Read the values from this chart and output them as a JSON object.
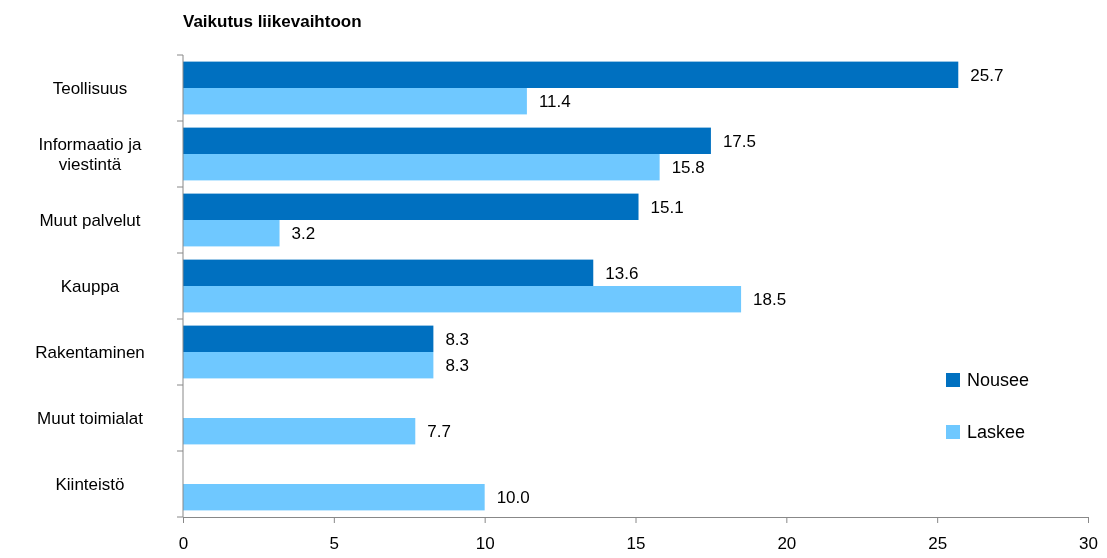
{
  "chart_data": {
    "type": "bar",
    "orientation": "horizontal",
    "title": "Vaikutus liikevaihtoon",
    "categories": [
      "Teollisuus",
      "Informaatio ja viestintä",
      "Muut palvelut",
      "Kauppa",
      "Rakentaminen",
      "Muut toimialat",
      "Kiinteistö"
    ],
    "series": [
      {
        "name": "Nousee",
        "color": "#0070c0",
        "values": [
          25.7,
          17.5,
          15.1,
          13.6,
          8.3,
          null,
          null
        ],
        "value_labels": [
          "25.7",
          "17.5",
          "15.1",
          "13.6",
          "8.3",
          null,
          null
        ]
      },
      {
        "name": "Laskee",
        "color": "#6fc8ff",
        "values": [
          11.4,
          15.8,
          3.2,
          18.5,
          8.3,
          7.7,
          10.0
        ],
        "value_labels": [
          "11.4",
          "15.8",
          "3.2",
          "18.5",
          "8.3",
          "7.7",
          "10.0"
        ]
      }
    ],
    "xlim": [
      0,
      30
    ],
    "xticks": [
      0,
      5,
      10,
      15,
      20,
      25,
      30
    ],
    "grid": false,
    "legend": "right"
  }
}
